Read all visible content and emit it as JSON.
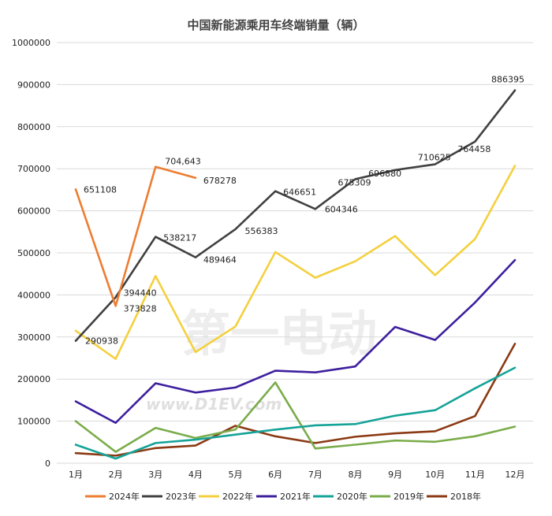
{
  "chart_data": {
    "type": "line",
    "title": "中国新能源乘用车终端销量（辆）",
    "categories": [
      "1月",
      "2月",
      "3月",
      "4月",
      "5月",
      "6月",
      "7月",
      "8月",
      "9月",
      "10月",
      "11月",
      "12月"
    ],
    "ylim": [
      0,
      1000000
    ],
    "yticks": [
      "0",
      "100000",
      "200000",
      "300000",
      "400000",
      "500000",
      "600000",
      "700000",
      "800000",
      "900000",
      "1000000"
    ],
    "grid": true,
    "legend_position": "bottom",
    "series": [
      {
        "name": "2024年",
        "color": "#ed7d31",
        "values": [
          651108,
          373828,
          704643,
          678278,
          null,
          null,
          null,
          null,
          null,
          null,
          null,
          null
        ],
        "labels": [
          "651108",
          "373828",
          "704,643",
          "678278",
          "",
          "",
          "",
          "",
          "",
          "",
          "",
          ""
        ]
      },
      {
        "name": "2023年",
        "color": "#404040",
        "values": [
          290938,
          394440,
          538217,
          489464,
          556383,
          646651,
          604346,
          675309,
          696880,
          710625,
          764458,
          886395
        ],
        "labels": [
          "290938",
          "394440",
          "538217",
          "489464",
          "556383",
          "646651",
          "604346",
          "675309",
          "696880",
          "710625",
          "764458",
          "886395"
        ]
      },
      {
        "name": "2022年",
        "color": "#f4d03f",
        "values": [
          315000,
          248000,
          445000,
          264000,
          325000,
          502000,
          441000,
          480000,
          540000,
          447000,
          533000,
          707000
        ]
      },
      {
        "name": "2021年",
        "color": "#3d1f9e",
        "values": [
          147000,
          96000,
          190000,
          168000,
          180000,
          220000,
          216000,
          230000,
          324000,
          293000,
          382000,
          483000
        ]
      },
      {
        "name": "2020年",
        "color": "#15a398",
        "values": [
          44000,
          11000,
          48000,
          56000,
          68000,
          80000,
          90000,
          93000,
          113000,
          126000,
          178000,
          227000
        ]
      },
      {
        "name": "2019年",
        "color": "#7aac4a",
        "values": [
          100000,
          27000,
          84000,
          60000,
          80000,
          192000,
          35000,
          44000,
          54000,
          51000,
          64000,
          87000
        ]
      },
      {
        "name": "2018年",
        "color": "#8b3a13",
        "values": [
          24000,
          18000,
          36000,
          42000,
          89000,
          64000,
          48000,
          63000,
          71000,
          76000,
          112000,
          284000
        ]
      }
    ]
  },
  "watermark": {
    "brand": "第一电动",
    "url": "www.D1EV.com"
  }
}
